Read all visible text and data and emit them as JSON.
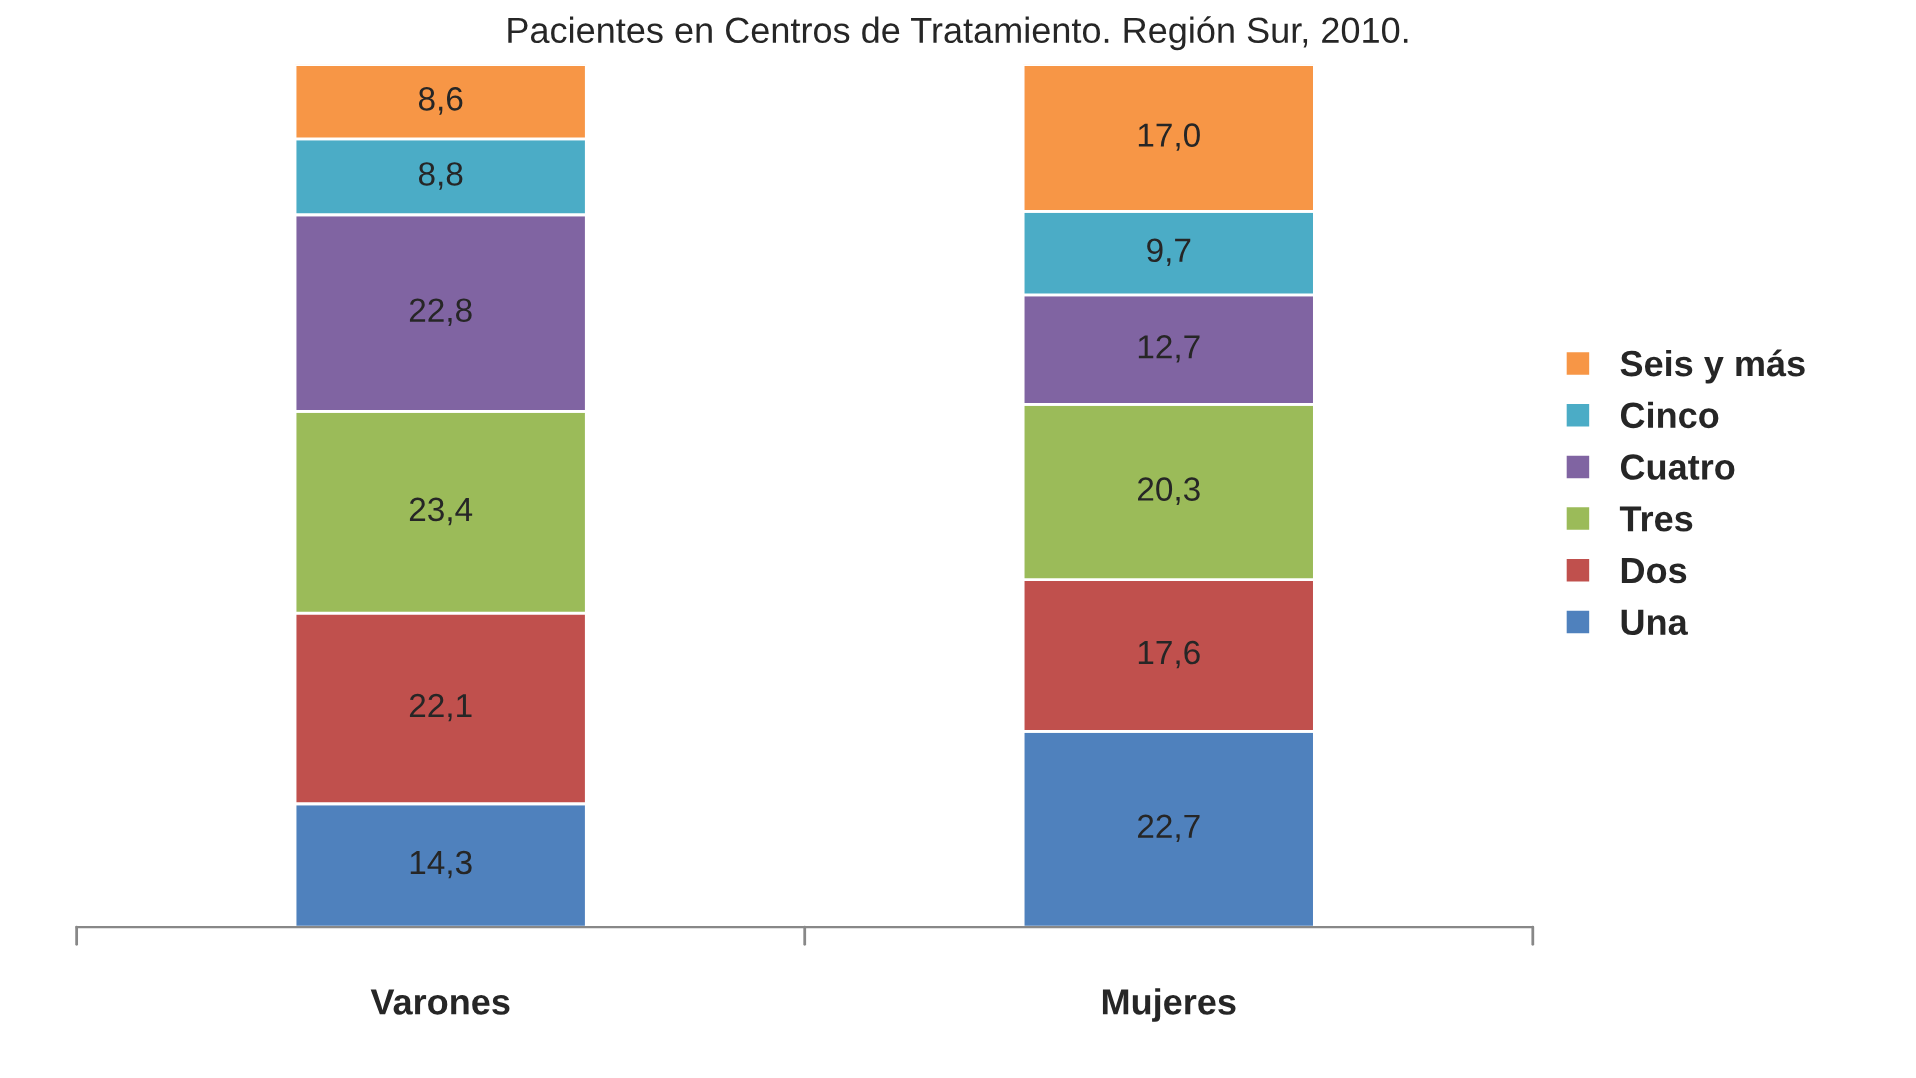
{
  "chart_data": {
    "type": "bar",
    "title": "Pacientes en Centros de Tratamiento. Región Sur, 2010.",
    "categories": [
      "Varones",
      "Mujeres"
    ],
    "stacked": true,
    "legend": "right",
    "series": [
      {
        "name": "Una",
        "color": "#4f81bd",
        "values": [
          14.3,
          22.7
        ],
        "value_labels": [
          "14,3",
          "22,7"
        ]
      },
      {
        "name": "Dos",
        "color": "#c0504d",
        "values": [
          22.1,
          17.6
        ],
        "value_labels": [
          "22,1",
          "17,6"
        ]
      },
      {
        "name": "Tres",
        "color": "#9bbb59",
        "values": [
          23.4,
          20.3
        ],
        "value_labels": [
          "23,4",
          "20,3"
        ]
      },
      {
        "name": "Cuatro",
        "color": "#8064a2",
        "values": [
          22.8,
          12.7
        ],
        "value_labels": [
          "22,8",
          "12,7"
        ]
      },
      {
        "name": "Cinco",
        "color": "#4bacc6",
        "values": [
          8.8,
          9.7
        ],
        "value_labels": [
          "8,8",
          "9,7"
        ]
      },
      {
        "name": "Seis y más",
        "color": "#f79646",
        "values": [
          8.6,
          17.0
        ],
        "value_labels": [
          "8,6",
          "17,0"
        ]
      }
    ]
  }
}
